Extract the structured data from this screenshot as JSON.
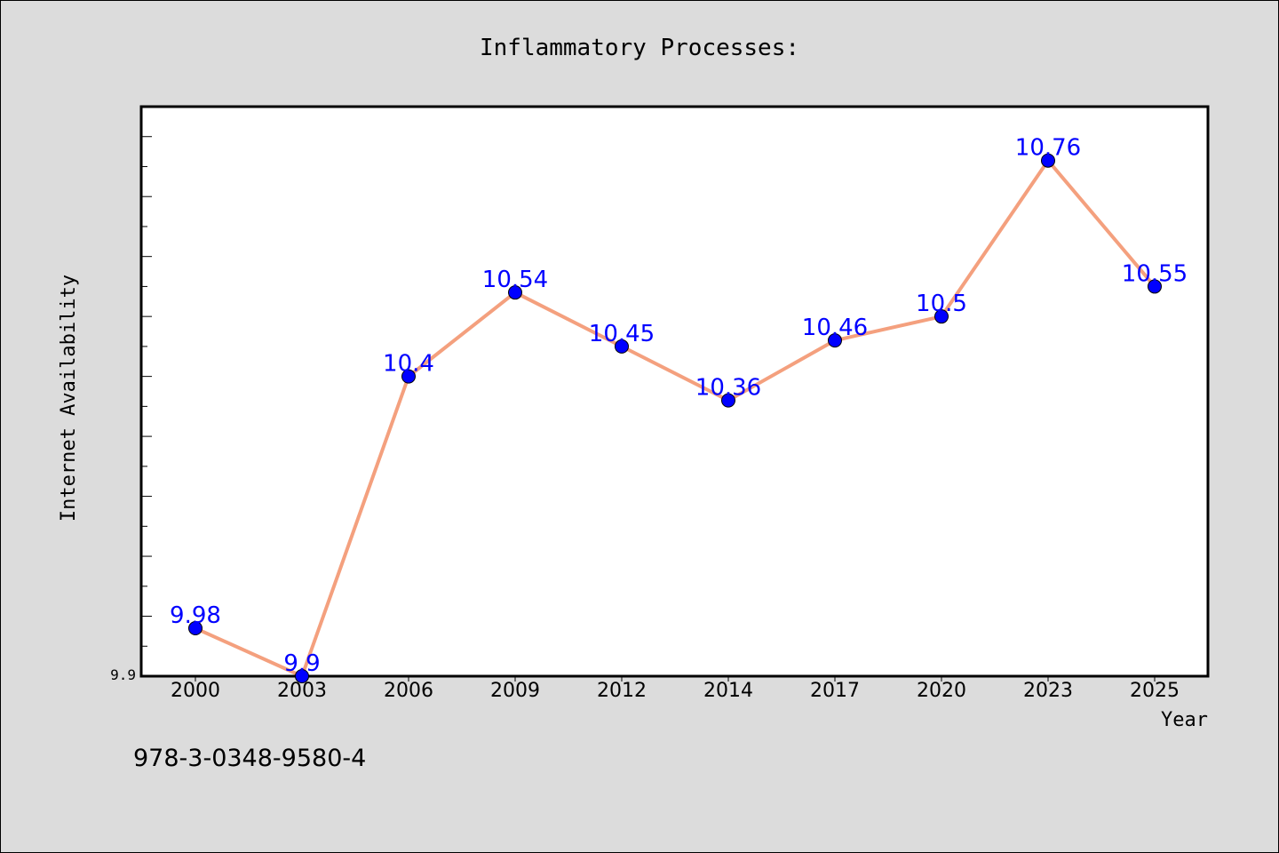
{
  "chart_data": {
    "type": "line",
    "title": "Inflammatory Processes:",
    "xlabel": "Year",
    "ylabel": "Internet Availability",
    "categories": [
      "2000",
      "2003",
      "2006",
      "2009",
      "2012",
      "2014",
      "2017",
      "2020",
      "2023",
      "2025"
    ],
    "series": [
      {
        "values": [
          9.98,
          9.9,
          10.4,
          10.54,
          10.45,
          10.36,
          10.46,
          10.5,
          10.76,
          10.55
        ],
        "labels": [
          "9.98",
          "9.9",
          "10.4",
          "10.54",
          "10.45",
          "10.36",
          "10.46",
          "10.5",
          "10.76",
          "10.55"
        ]
      }
    ],
    "yticks": [
      "9.9"
    ],
    "ylim": [
      9.9,
      10.85
    ],
    "grid": false,
    "colors": {
      "line": "#f4a07e",
      "marker": "#0000ff",
      "label": "#0000ff",
      "background": "#dcdcdc",
      "plot_background": "#ffffff"
    }
  },
  "footer": {
    "isbn": "978-3-0348-9580-4"
  }
}
